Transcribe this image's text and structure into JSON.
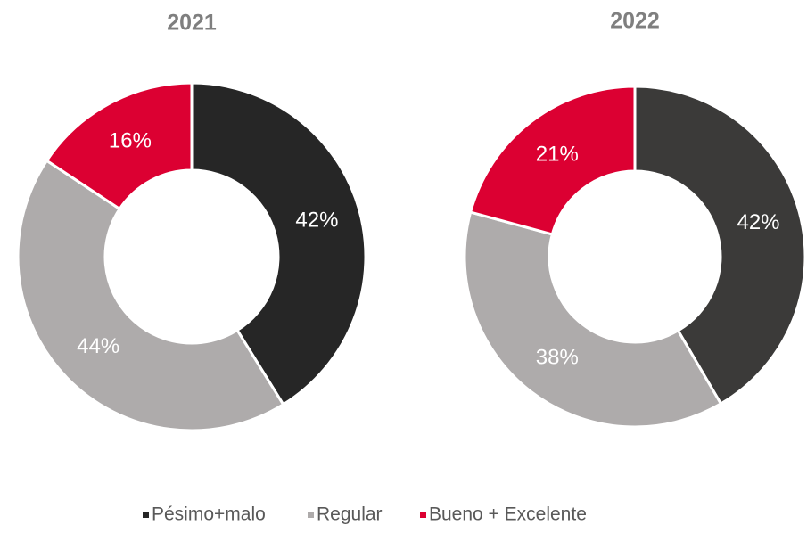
{
  "chart_data": [
    {
      "type": "pie",
      "title": "2021",
      "categories": [
        "Pésimo+malo",
        "Regular",
        "Bueno + Excelente"
      ],
      "values": [
        42,
        44,
        16
      ],
      "value_labels": [
        "42%",
        "44%",
        "16%"
      ],
      "colors": [
        "#262626",
        "#aeabab",
        "#dc0032"
      ]
    },
    {
      "type": "pie",
      "title": "2022",
      "categories": [
        "Pésimo+malo",
        "Regular",
        "Bueno + Excelente"
      ],
      "values": [
        42,
        38,
        21
      ],
      "value_labels": [
        "42%",
        "38%",
        "21%"
      ],
      "colors": [
        "#3b3a39",
        "#aeabab",
        "#dc0032"
      ]
    }
  ]
}
